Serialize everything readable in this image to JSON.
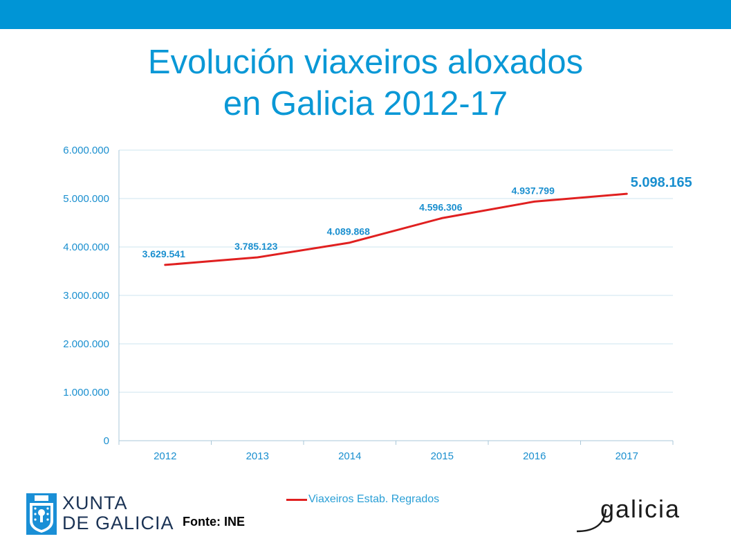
{
  "title_lines": [
    "Evolución viaxeiros aloxados",
    "en Galicia 2012-17"
  ],
  "colors": {
    "accent": "#0095d6",
    "title": "#0a98d6",
    "series": "#e02020",
    "labels": "#1a8fcf"
  },
  "chart_data": {
    "type": "line",
    "categories": [
      "2012",
      "2013",
      "2014",
      "2015",
      "2016",
      "2017"
    ],
    "series": [
      {
        "name": "Viaxeiros Estab. Regrados",
        "values": [
          3629541,
          3785123,
          4089868,
          4596306,
          4937799,
          5098165
        ]
      }
    ],
    "data_labels": [
      "3.629.541",
      "3.785.123",
      "4.089.868",
      "4.596.306",
      "4.937.799",
      "5.098.165"
    ],
    "ylim": [
      0,
      6000000
    ],
    "yticks": [
      0,
      1000000,
      2000000,
      3000000,
      4000000,
      5000000,
      6000000
    ],
    "ytick_labels": [
      "0",
      "1.000.000",
      "2.000.000",
      "3.000.000",
      "4.000.000",
      "5.000.000",
      "6.000.000"
    ],
    "grid": true,
    "legend_position": "bottom"
  },
  "legend_label": "Viaxeiros Estab. Regrados",
  "footer": {
    "xunta_line1": "XUNTA",
    "xunta_line2": "DE GALICIA",
    "source": "Fonte: INE",
    "brand": "galicia"
  }
}
